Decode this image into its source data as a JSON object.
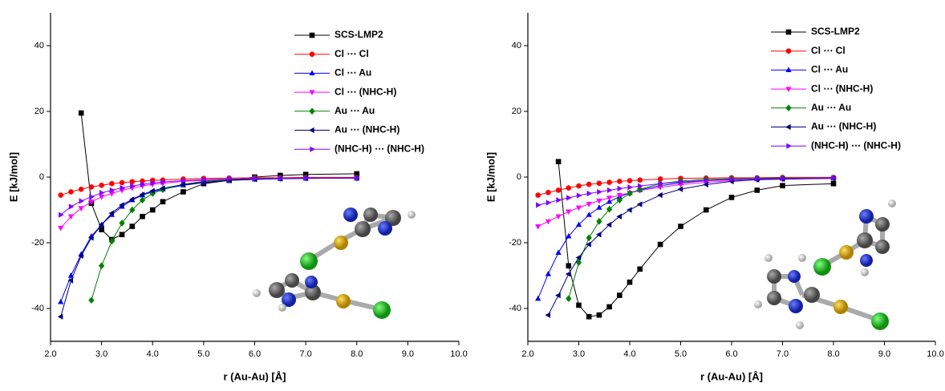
{
  "chart_data": [
    {
      "type": "line",
      "x_label": "r (Au-Au) [Å]",
      "y_label": "E [kJ/mol]",
      "legend": "top-right",
      "xlim": [
        2,
        10
      ],
      "ylim": [
        -50,
        50
      ],
      "xticks": [
        {
          "value": 2,
          "label": "2.0"
        },
        {
          "value": 3,
          "label": "3.0"
        },
        {
          "value": 4,
          "label": "4.0"
        },
        {
          "value": 5,
          "label": "5.0"
        },
        {
          "value": 6,
          "label": "6.0"
        },
        {
          "value": 7,
          "label": "7.0"
        },
        {
          "value": 8,
          "label": "8.0"
        },
        {
          "value": 9,
          "label": "9.0"
        },
        {
          "value": 10,
          "label": "10.0"
        }
      ],
      "yticks": [
        -40,
        -20,
        0,
        20,
        40
      ],
      "x": [
        2.2,
        2.4,
        2.6,
        2.8,
        3.0,
        3.2,
        3.4,
        3.6,
        3.8,
        4.0,
        4.2,
        4.6,
        5.0,
        5.5,
        6.0,
        6.5,
        7.0,
        8.0
      ],
      "series": [
        {
          "name": "SCS-LMP2",
          "color": "#000000",
          "marker": "square",
          "values": [
            null,
            null,
            19.5,
            -8,
            -16,
            -19,
            -17.5,
            -15,
            -12,
            -10,
            -7.5,
            -4.5,
            -2,
            -1,
            0,
            0.5,
            0.8,
            1
          ]
        },
        {
          "name": "Cl ⋯ Cl",
          "color": "#ff0000",
          "marker": "circle",
          "values": [
            -5.5,
            -4.5,
            -3.7,
            -3.0,
            -2.5,
            -2.0,
            -1.7,
            -1.4,
            -1.2,
            -1.0,
            -0.9,
            -0.6,
            -0.4,
            -0.3,
            -0.2,
            -0.2,
            -0.1,
            -0.1
          ]
        },
        {
          "name": "Cl ⋯ Au",
          "color": "#0000ff",
          "marker": "triangle-up",
          "values": [
            -38,
            -30,
            -23.5,
            -18,
            -14.5,
            -11.5,
            -9,
            -7,
            -5.5,
            -4.5,
            -3.7,
            -2.5,
            -1.7,
            -1,
            -0.7,
            -0.5,
            -0.4,
            -0.3
          ]
        },
        {
          "name": "Cl ⋯ (NHC-H)",
          "color": "#ff00ff",
          "marker": "triangle-down",
          "values": [
            -15.5,
            -12,
            -9.5,
            -7.5,
            -6,
            -5,
            -4,
            -3.3,
            -2.7,
            -2.2,
            -1.9,
            -1.3,
            -1,
            -0.7,
            -0.5,
            -0.4,
            -0.3,
            -0.3
          ]
        },
        {
          "name": "Au ⋯ Au",
          "color": "#008000",
          "marker": "diamond",
          "values": [
            null,
            null,
            null,
            -37.5,
            -27,
            -19.5,
            -14,
            -10,
            -7,
            -5,
            -3.8,
            -2.2,
            -1.3,
            -0.8,
            -0.5,
            -0.4,
            -0.3,
            -0.3
          ]
        },
        {
          "name": "Au ⋯ (NHC-H)",
          "color": "#000080",
          "marker": "triangle-left",
          "values": [
            -42.5,
            -31.5,
            -24,
            -18.5,
            -14.5,
            -11,
            -8.5,
            -6.8,
            -5.3,
            -4.2,
            -3.4,
            -2.3,
            -1.6,
            -1,
            -0.7,
            -0.5,
            -0.4,
            -0.3
          ]
        },
        {
          "name": "(NHC-H) ⋯ (NHC-H)",
          "color": "#8000ff",
          "marker": "triangle-right",
          "values": [
            -11.5,
            -9,
            -7.3,
            -6,
            -4.8,
            -4,
            -3.3,
            -2.7,
            -2.2,
            -1.8,
            -1.5,
            -1.1,
            -0.8,
            -0.6,
            -0.5,
            -0.4,
            -0.3,
            -0.3
          ]
        }
      ]
    },
    {
      "type": "line",
      "x_label": "r (Au-Au) [Å]",
      "y_label": "E [kJ/mol]",
      "legend": "top-right",
      "xlim": [
        2,
        10
      ],
      "ylim": [
        -50,
        50
      ],
      "xticks": [
        {
          "value": 2,
          "label": "2.0"
        },
        {
          "value": 3,
          "label": "3.0"
        },
        {
          "value": 4,
          "label": "4.0"
        },
        {
          "value": 5,
          "label": "5.0"
        },
        {
          "value": 6,
          "label": "6.0"
        },
        {
          "value": 7,
          "label": "7.0"
        },
        {
          "value": 8,
          "label": "8.0"
        },
        {
          "value": 9,
          "label": "9.0"
        },
        {
          "value": 10,
          "label": "10.0"
        }
      ],
      "yticks": [
        -40,
        -20,
        0,
        20,
        40
      ],
      "x": [
        2.2,
        2.4,
        2.6,
        2.8,
        3.0,
        3.2,
        3.4,
        3.6,
        3.8,
        4.0,
        4.2,
        4.6,
        5.0,
        5.5,
        6.0,
        6.5,
        7.0,
        8.0
      ],
      "series": [
        {
          "name": "SCS-LMP2",
          "color": "#000000",
          "marker": "square",
          "values": [
            null,
            null,
            4.7,
            -27,
            -39,
            -42.5,
            -42,
            -39.5,
            -36,
            -32,
            -28,
            -20.5,
            -15,
            -10,
            -6.2,
            -4,
            -2.6,
            -2
          ]
        },
        {
          "name": "Cl ⋯ Cl",
          "color": "#ff0000",
          "marker": "circle",
          "values": [
            -5.5,
            -4.7,
            -4,
            -3.3,
            -2.7,
            -2.2,
            -1.9,
            -1.6,
            -1.3,
            -1.1,
            -0.9,
            -0.6,
            -0.4,
            -0.3,
            -0.2,
            -0.2,
            -0.1,
            -0.1
          ]
        },
        {
          "name": "Cl ⋯ Au",
          "color": "#0000ff",
          "marker": "triangle-up",
          "values": [
            -37,
            -29.5,
            -23,
            -18,
            -14.5,
            -11.5,
            -9.3,
            -7.5,
            -6,
            -4.8,
            -3.9,
            -2.6,
            -1.8,
            -1.1,
            -0.8,
            -0.5,
            -0.4,
            -0.3
          ]
        },
        {
          "name": "Cl ⋯ (NHC-H)",
          "color": "#ff00ff",
          "marker": "triangle-down",
          "values": [
            -15,
            -13.5,
            -12,
            -10.5,
            -9.3,
            -8.2,
            -7.2,
            -6.3,
            -5.5,
            -4.8,
            -4.1,
            -3.1,
            -2.3,
            -1.6,
            -1.1,
            -0.8,
            -0.6,
            -0.4
          ]
        },
        {
          "name": "Au ⋯ Au",
          "color": "#008000",
          "marker": "diamond",
          "values": [
            null,
            null,
            null,
            -37,
            -26,
            -18.5,
            -13.5,
            -9.8,
            -7,
            -5,
            -3.7,
            -2,
            -1.2,
            -0.7,
            -0.5,
            -0.4,
            -0.3,
            -0.3
          ]
        },
        {
          "name": "Au ⋯ (NHC-H)",
          "color": "#000080",
          "marker": "triangle-left",
          "values": [
            null,
            -42,
            -36,
            -29.5,
            -24.5,
            -20.5,
            -17.5,
            -14.5,
            -12,
            -10,
            -8.3,
            -5.5,
            -3.7,
            -2.3,
            -1.3,
            -0.8,
            -0.6,
            -0.4
          ]
        },
        {
          "name": "(NHC-H) ⋯ (NHC-H)",
          "color": "#8000ff",
          "marker": "triangle-right",
          "values": [
            -8.5,
            -7.8,
            -7,
            -6.3,
            -5.6,
            -5,
            -4.5,
            -4,
            -3.5,
            -3.1,
            -2.7,
            -2,
            -1.5,
            -1,
            -0.7,
            -0.5,
            -0.4,
            -0.3
          ]
        }
      ]
    }
  ]
}
